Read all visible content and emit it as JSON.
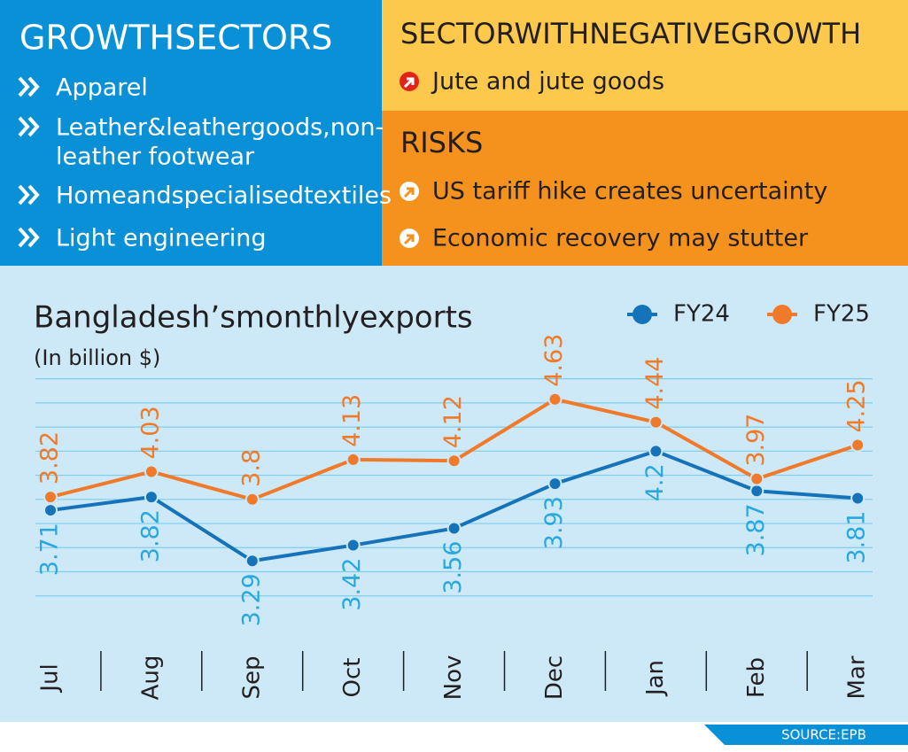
{
  "growth_sectors": {
    "title": "GROWTHSECTORS",
    "items": [
      [
        "Apparel"
      ],
      [
        "Leather&leathergoods,non-",
        "leather footwear"
      ],
      [
        "Homeandspecialisedtextiles"
      ],
      [
        "Light engineering"
      ]
    ]
  },
  "negative_growth": {
    "title": "SECTORWITHNEGATIVEGROWTH",
    "items": [
      "Jute and jute goods"
    ]
  },
  "risks": {
    "title": "RISKS",
    "items": [
      "US tariff hike creates uncertainty",
      "Economic recovery may stutter"
    ]
  },
  "chart_data": {
    "type": "line",
    "title": "Bangladesh’smonthlyexports",
    "subtitle": "(In billion $)",
    "categories": [
      "Jul",
      "Aug",
      "Sep",
      "Oct",
      "Nov",
      "Dec",
      "Jan",
      "Feb",
      "Mar"
    ],
    "series": [
      {
        "name": "FY24",
        "color": "#1672b9",
        "label_color": "#29a8df",
        "values": [
          3.71,
          3.82,
          3.29,
          3.42,
          3.56,
          3.93,
          4.2,
          3.87,
          3.81
        ]
      },
      {
        "name": "FY25",
        "color": "#f07a2a",
        "label_color": "#f07a2a",
        "values": [
          3.82,
          4.03,
          3.8,
          4.13,
          4.12,
          4.63,
          4.44,
          3.97,
          4.25
        ]
      }
    ],
    "ylim": [
      2.8,
      4.9
    ],
    "yticks": [
      3.0,
      3.2,
      3.4,
      3.6,
      3.8,
      4.0,
      4.2,
      4.4,
      4.6,
      4.8
    ],
    "grid": true,
    "legend": "top-right"
  },
  "source": "SOURCE:EPB"
}
